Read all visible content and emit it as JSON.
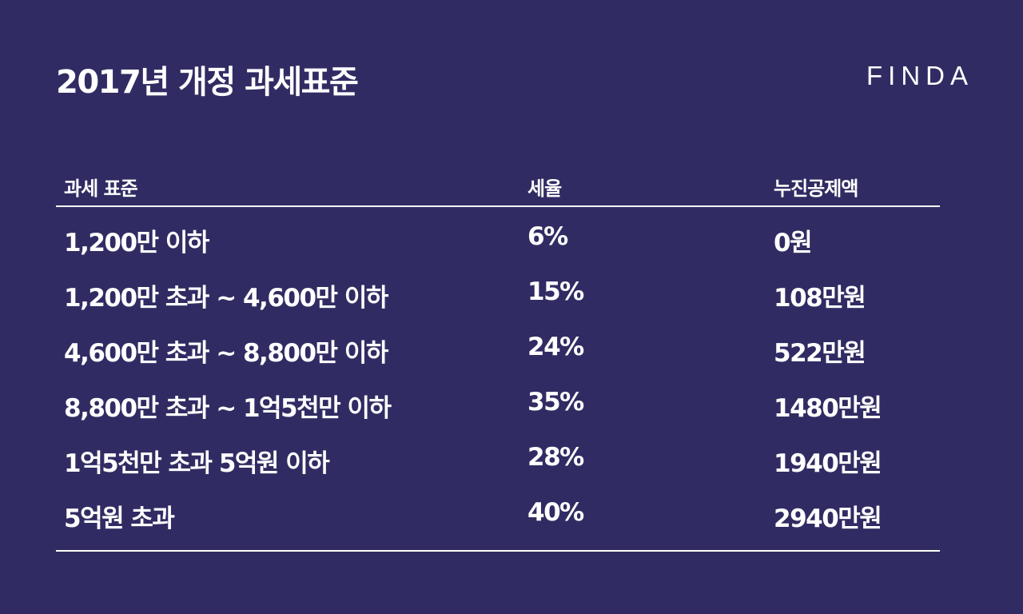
{
  "title": "2017년 개정 과세표준",
  "brand": {
    "logo_text": "FINDA"
  },
  "colors": {
    "background": "#302c63",
    "text": "#ffffff",
    "rule": "#ffffff"
  },
  "table": {
    "headers": [
      "과세 표준",
      "세율",
      "누진공제액"
    ],
    "rows": [
      [
        "1,200만 이하",
        "6%",
        "0원"
      ],
      [
        "1,200만 초과 ~ 4,600만 이하",
        "15%",
        "108만원"
      ],
      [
        "4,600만 초과 ~ 8,800만 이하",
        "24%",
        "522만원"
      ],
      [
        "8,800만 초과 ~ 1억5천만 이하",
        "35%",
        "1480만원"
      ],
      [
        "1억5천만 초과 5억원 이하",
        "28%",
        "1940만원"
      ],
      [
        "5억원 초과",
        "40%",
        "2940만원"
      ]
    ]
  }
}
